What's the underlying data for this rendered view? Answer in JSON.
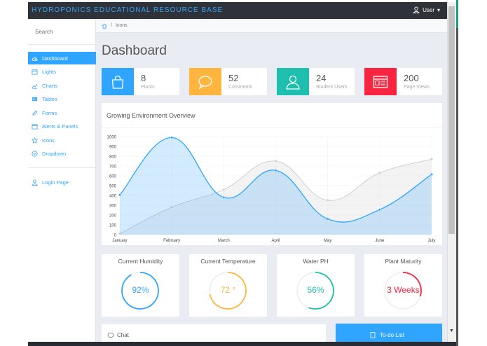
{
  "brand": "HYDROPONICS EDUCATIONAL RESOURCE BASE",
  "user_menu": {
    "label": "User",
    "caret": "▾"
  },
  "sidebar": {
    "search_placeholder": "Search",
    "items": [
      {
        "label": "Dashboard",
        "icon": "dashboard-icon",
        "active": true
      },
      {
        "label": "Lights",
        "icon": "calendar-icon"
      },
      {
        "label": "Charts",
        "icon": "line-chart-icon"
      },
      {
        "label": "Tables",
        "icon": "table-icon"
      },
      {
        "label": "Forms",
        "icon": "pencil-icon"
      },
      {
        "label": "Alerts & Panels",
        "icon": "calendar-icon"
      },
      {
        "label": "Icons",
        "icon": "star-icon"
      },
      {
        "label": "Dropdown",
        "icon": "chevron-circle-icon"
      }
    ],
    "login": {
      "label": "Login Page",
      "icon": "user-icon"
    }
  },
  "breadcrumb": {
    "home_icon": "home-icon",
    "sep": "/",
    "current": "Icons"
  },
  "page_title": "Dashboard",
  "stats": [
    {
      "num": "8",
      "label": "Plants",
      "color": "#30a5ff",
      "icon": "shopping-bag-icon"
    },
    {
      "num": "52",
      "label": "Comments",
      "color": "#ffb53e",
      "icon": "speech-bubble-icon"
    },
    {
      "num": "24",
      "label": "Student Users",
      "color": "#1ebfae",
      "icon": "user-icon"
    },
    {
      "num": "200",
      "label": "Page Views",
      "color": "#f9243f",
      "icon": "browser-window-icon"
    }
  ],
  "chart_title": "Growing Environment Overview",
  "chart_data": {
    "type": "line",
    "categories": [
      "January",
      "February",
      "March",
      "April",
      "May",
      "June",
      "July"
    ],
    "series": [
      {
        "values": [
          10,
          280,
          460,
          750,
          350,
          630,
          770
        ],
        "color": "#cccccc"
      },
      {
        "values": [
          405,
          990,
          380,
          655,
          160,
          255,
          615
        ],
        "color": "#30a5ff"
      }
    ],
    "yticks": [
      0,
      100,
      200,
      300,
      400,
      500,
      600,
      700,
      800,
      900,
      1000
    ],
    "ylim": [
      0,
      1000
    ]
  },
  "gauges": [
    {
      "title": "Current Humidity",
      "value": "92%",
      "color": "#30a5ff",
      "fraction": 0.92
    },
    {
      "title": "Current Temperature",
      "value": "72 °",
      "color": "#ffb53e",
      "fraction": 0.72
    },
    {
      "title": "Water PH",
      "value": "56%",
      "color": "#1ebfae",
      "fraction": 0.56
    },
    {
      "title": "Plant Maturity",
      "value": "3 Weeks",
      "color": "#f9243f",
      "fraction": 0.3
    }
  ],
  "chat_title": "Chat",
  "todo_title": "To-do List"
}
